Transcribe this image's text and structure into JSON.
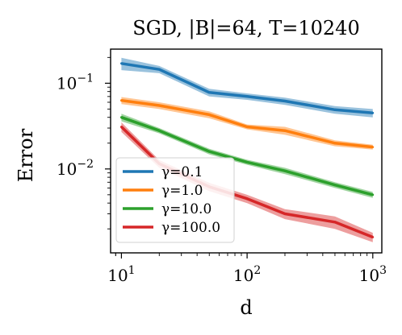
{
  "chart_data": {
    "type": "line",
    "title": "SGD, |B|=64, T=10240",
    "xlabel": "d",
    "ylabel": "Error",
    "xscale": "log",
    "yscale": "log",
    "xlim": [
      8.2,
      1180
    ],
    "ylim": [
      0.00105,
      0.25
    ],
    "x_ticks": [
      {
        "value": 10,
        "base": "10",
        "exp": "1"
      },
      {
        "value": 100,
        "base": "10",
        "exp": "2"
      },
      {
        "value": 1000,
        "base": "10",
        "exp": "3"
      }
    ],
    "y_ticks": [
      {
        "value": 0.01,
        "base": "10",
        "exp": "−2"
      },
      {
        "value": 0.1,
        "base": "10",
        "exp": "−1"
      }
    ],
    "grid": false,
    "legend_position": "lower-left",
    "x": [
      10,
      20,
      50,
      100,
      200,
      500,
      1000
    ],
    "series": [
      {
        "name": "γ=0.1",
        "color": "#1f77b4",
        "values": [
          0.17,
          0.145,
          0.078,
          0.07,
          0.062,
          0.049,
          0.045
        ],
        "band": [
          0.028,
          0.014,
          0.008,
          0.006,
          0.006,
          0.005,
          0.005
        ]
      },
      {
        "name": "γ=1.0",
        "color": "#ff7f0e",
        "values": [
          0.063,
          0.055,
          0.043,
          0.031,
          0.028,
          0.02,
          0.018
        ],
        "band": [
          0.006,
          0.005,
          0.004,
          0.002,
          0.003,
          0.0016,
          0.0012
        ]
      },
      {
        "name": "γ=10.0",
        "color": "#2ca02c",
        "values": [
          0.04,
          0.028,
          0.016,
          0.012,
          0.0095,
          0.0065,
          0.005
        ],
        "band": [
          0.004,
          0.002,
          0.0012,
          0.0008,
          0.0008,
          0.0005,
          0.0004
        ]
      },
      {
        "name": "γ=100.0",
        "color": "#d62728",
        "values": [
          0.031,
          0.0115,
          0.0062,
          0.0045,
          0.003,
          0.0024,
          0.0016
        ],
        "band": [
          0.004,
          0.0012,
          0.0007,
          0.0005,
          0.0004,
          0.0004,
          0.0002
        ]
      }
    ]
  }
}
